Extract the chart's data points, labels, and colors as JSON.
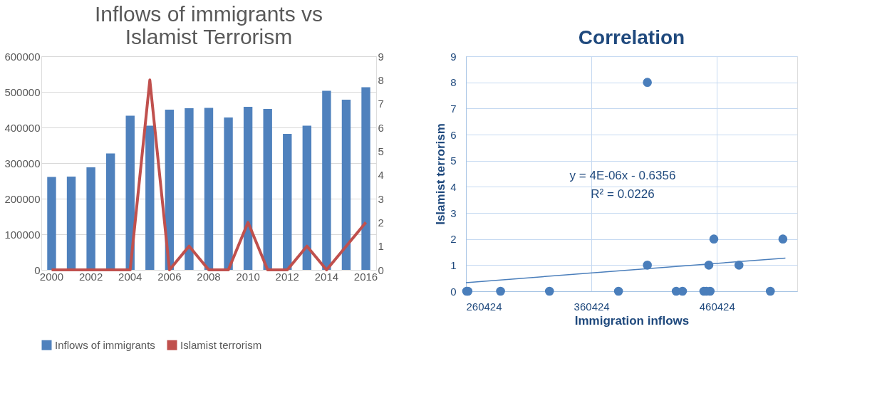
{
  "chart_data": [
    {
      "type": "bar",
      "title": "Inflows of immigrants vs Islamist Terrorism",
      "categories": [
        "2000",
        null,
        "2002",
        null,
        "2004",
        null,
        "2006",
        null,
        "2008",
        null,
        "2010",
        null,
        "2012",
        null,
        "2014",
        null,
        "2016"
      ],
      "series": [
        {
          "name": "Inflows of immigrants",
          "color": "#4f81bd",
          "values": [
            261000,
            262000,
            288000,
            327000,
            433000,
            405000,
            450000,
            454000,
            455000,
            428000,
            458000,
            452000,
            382000,
            405000,
            503000,
            478000,
            513000
          ]
        },
        {
          "name": "Islamist terrorism",
          "color": "#c0504d",
          "type": "line",
          "axis": "y2",
          "values": [
            0,
            0,
            0,
            0,
            0,
            8,
            0,
            1,
            0,
            0,
            2,
            0,
            0,
            1,
            0,
            1,
            2
          ]
        }
      ],
      "ylim": [
        0,
        600000
      ],
      "yticks": [
        0,
        100000,
        200000,
        300000,
        400000,
        500000,
        600000
      ],
      "y2lim": [
        0,
        9
      ],
      "y2ticks": [
        0,
        1,
        2,
        3,
        4,
        5,
        6,
        7,
        8,
        9
      ],
      "grid": "y",
      "legend": "bottom"
    },
    {
      "type": "scatter",
      "title": "Correlation",
      "xlabel": "Immigration inflows",
      "ylabel": "Islamist terrorism",
      "series": [
        {
          "color": "#4a7ebb",
          "marker": "circle",
          "x": [
            261000,
            262000,
            288000,
            327000,
            433000,
            405000,
            450000,
            454000,
            455000,
            428000,
            458000,
            452000,
            382000,
            405000,
            503000,
            478000,
            513000
          ],
          "values": [
            0,
            0,
            0,
            0,
            0,
            8,
            0,
            1,
            0,
            0,
            2,
            0,
            0,
            1,
            0,
            1,
            2
          ]
        },
        {
          "type": "line",
          "color": "#4a7ebb",
          "x": [
            260424,
            515000
          ],
          "values": [
            0.33,
            1.27
          ]
        }
      ],
      "xlim": [
        260424,
        524424
      ],
      "xticks": [
        260424,
        360424,
        460424
      ],
      "ylim": [
        0,
        9
      ],
      "yticks": [
        0,
        1,
        2,
        3,
        4,
        5,
        6,
        7,
        8,
        9
      ],
      "grid": true,
      "annotations": [
        "y = 4E-06x - 0.6356",
        "R² = 0.0226"
      ]
    }
  ]
}
